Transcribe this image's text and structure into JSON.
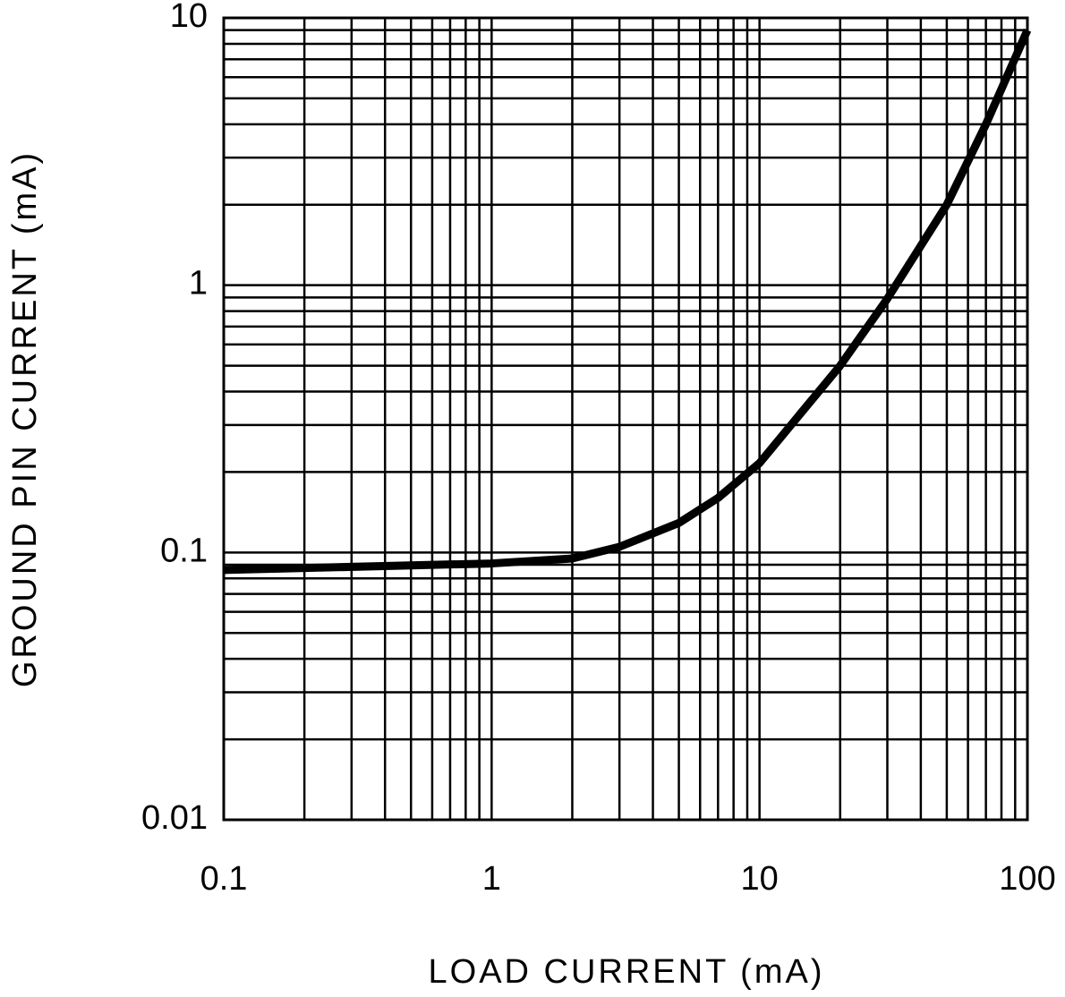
{
  "chart_data": {
    "type": "line",
    "xlabel": "LOAD CURRENT (mA)",
    "ylabel": "GROUND PIN CURRENT (mA)",
    "x": [
      0.1,
      1,
      2,
      3,
      5,
      7,
      10,
      20,
      30,
      50,
      70,
      100
    ],
    "series": [
      {
        "name": null,
        "color": "#000000",
        "values": [
          0.086,
          0.091,
          0.095,
          0.105,
          0.129,
          0.16,
          0.216,
          0.5,
          0.89,
          2.0,
          4.0,
          9.0
        ]
      }
    ],
    "xlim": [
      0.1,
      100
    ],
    "ylim": [
      0.01,
      10
    ],
    "xticks": [
      0.1,
      1,
      10,
      100
    ],
    "yticks": [
      0.01,
      0.1,
      1,
      10
    ],
    "xscale": "log",
    "yscale": "log",
    "grid": true,
    "minor_grid": true
  }
}
